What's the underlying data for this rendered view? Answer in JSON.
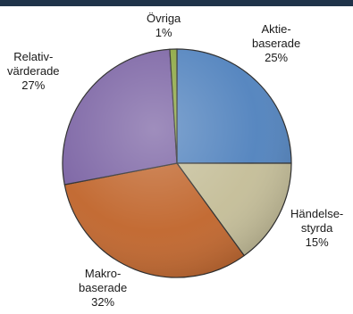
{
  "chart_data": {
    "type": "pie",
    "slices": [
      {
        "label_lines": [
          "Aktie-",
          "baserade"
        ],
        "pct_text": "25%",
        "value": 25,
        "color": "#4f81bd"
      },
      {
        "label_lines": [
          "Händelse-",
          "styrda"
        ],
        "pct_text": "15%",
        "value": 15,
        "color": "#c4bd97"
      },
      {
        "label_lines": [
          "Makro-",
          "baserade"
        ],
        "pct_text": "32%",
        "value": 32,
        "color": "#c0642a"
      },
      {
        "label_lines": [
          "Relativ-",
          "värderade"
        ],
        "pct_text": "27%",
        "value": 27,
        "color": "#7a62a3"
      },
      {
        "label_lines": [
          "Övriga"
        ],
        "pct_text": "1%",
        "value": 1,
        "color": "#8aa63e"
      }
    ]
  }
}
